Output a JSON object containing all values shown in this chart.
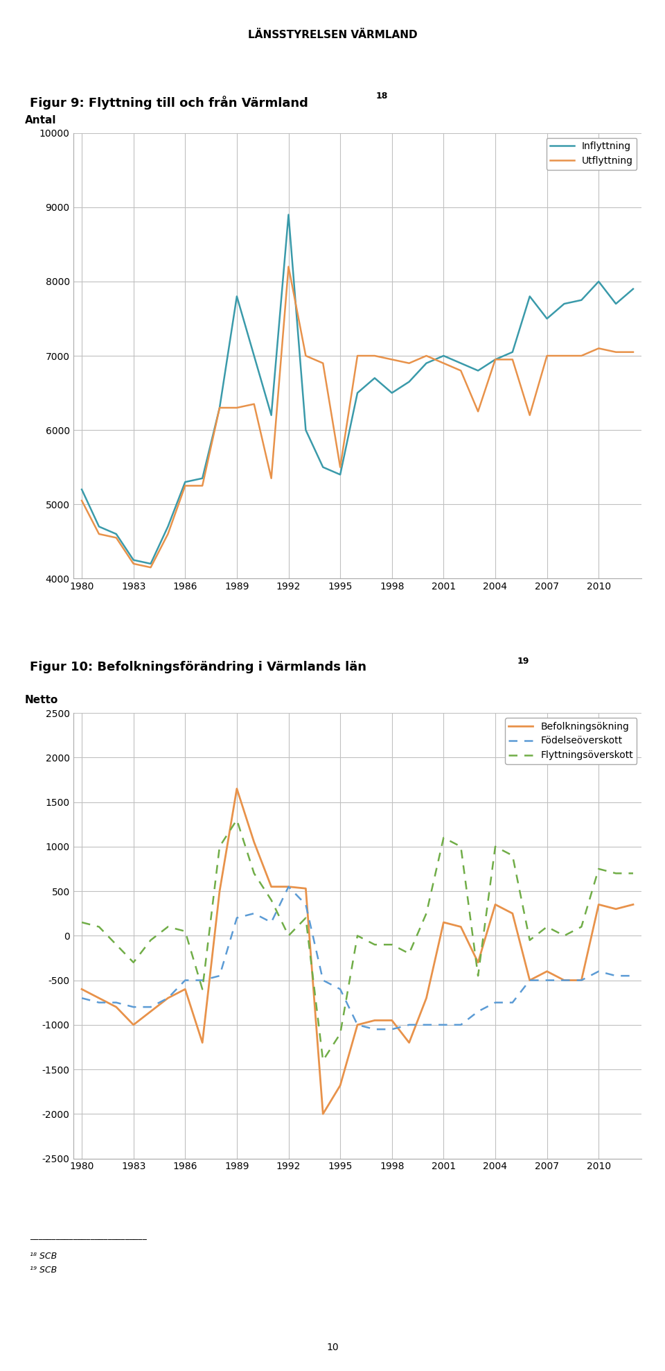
{
  "header": "LÄNSSTYRELSEN VÄRMLAND",
  "fig9_title": "Figur 9: Flyttning till och från Värmland",
  "fig9_title_sup": "18",
  "fig10_title": "Figur 10: Befolkningsförändring i Värmlands län",
  "fig10_title_sup": "19",
  "years": [
    1980,
    1981,
    1982,
    1983,
    1984,
    1985,
    1986,
    1987,
    1988,
    1989,
    1990,
    1991,
    1992,
    1993,
    1994,
    1995,
    1996,
    1997,
    1998,
    1999,
    2000,
    2001,
    2002,
    2003,
    2004,
    2005,
    2006,
    2007,
    2008,
    2009,
    2010,
    2011,
    2012
  ],
  "inflyttning": [
    5200,
    4700,
    4600,
    4250,
    4200,
    4700,
    5300,
    5350,
    6300,
    7800,
    7000,
    6200,
    8900,
    6000,
    5500,
    5400,
    6500,
    6700,
    6500,
    6650,
    6900,
    7000,
    6900,
    6800,
    6950,
    7050,
    7800,
    7500,
    7700,
    7750,
    8000,
    7700,
    7900
  ],
  "utflyttning": [
    5050,
    4600,
    4550,
    4200,
    4150,
    4600,
    5250,
    5250,
    6300,
    6300,
    6350,
    5350,
    8200,
    7000,
    6900,
    5500,
    7000,
    7000,
    6950,
    6900,
    7000,
    6900,
    6800,
    6250,
    6950,
    6950,
    6200,
    7000,
    7000,
    7000,
    7100,
    7050,
    7050
  ],
  "befolkningsokning": [
    -600,
    -700,
    -800,
    -1000,
    -850,
    -700,
    -600,
    -1200,
    500,
    1650,
    1050,
    550,
    550,
    530,
    -2000,
    -1680,
    -1000,
    -950,
    -950,
    -1200,
    -700,
    150,
    100,
    -300,
    350,
    250,
    -500,
    -400,
    -500,
    -500,
    350,
    300,
    350
  ],
  "fodelseoverskott": [
    -700,
    -750,
    -750,
    -800,
    -800,
    -700,
    -500,
    -500,
    -450,
    200,
    250,
    150,
    550,
    350,
    -500,
    -600,
    -1000,
    -1050,
    -1050,
    -1000,
    -1000,
    -1000,
    -1000,
    -850,
    -750,
    -750,
    -500,
    -500,
    -500,
    -500,
    -400,
    -450,
    -450
  ],
  "flyttningsoverkott": [
    150,
    100,
    -100,
    -300,
    -50,
    100,
    50,
    -600,
    1000,
    1300,
    700,
    400,
    0,
    200,
    -1400,
    -1100,
    0,
    -100,
    -100,
    -200,
    250,
    1100,
    1000,
    -450,
    1000,
    900,
    -50,
    100,
    0,
    100,
    750,
    700,
    700
  ],
  "fig9_ylabel": "Antal",
  "fig9_ylim": [
    4000,
    10000
  ],
  "fig9_yticks": [
    4000,
    5000,
    6000,
    7000,
    8000,
    9000,
    10000
  ],
  "fig10_ylabel": "Netto",
  "fig10_ylim": [
    -2500,
    2500
  ],
  "fig10_yticks": [
    -2500,
    -2000,
    -1500,
    -1000,
    -500,
    0,
    500,
    1000,
    1500,
    2000,
    2500
  ],
  "xticks": [
    1980,
    1983,
    1986,
    1989,
    1992,
    1995,
    1998,
    2001,
    2004,
    2007,
    2010
  ],
  "inflyttning_color": "#3a9aaa",
  "utflyttning_color": "#e8924a",
  "befolkningsokning_color": "#e8924a",
  "fodelseoverskott_color": "#5b9bd5",
  "flyttningsoverkott_color": "#70ad47",
  "footnote18": "¹⁸ SCB",
  "footnote19": "¹⁹ SCB",
  "page_number": "10",
  "background_color": "#ffffff",
  "grid_color": "#c0c0c0"
}
